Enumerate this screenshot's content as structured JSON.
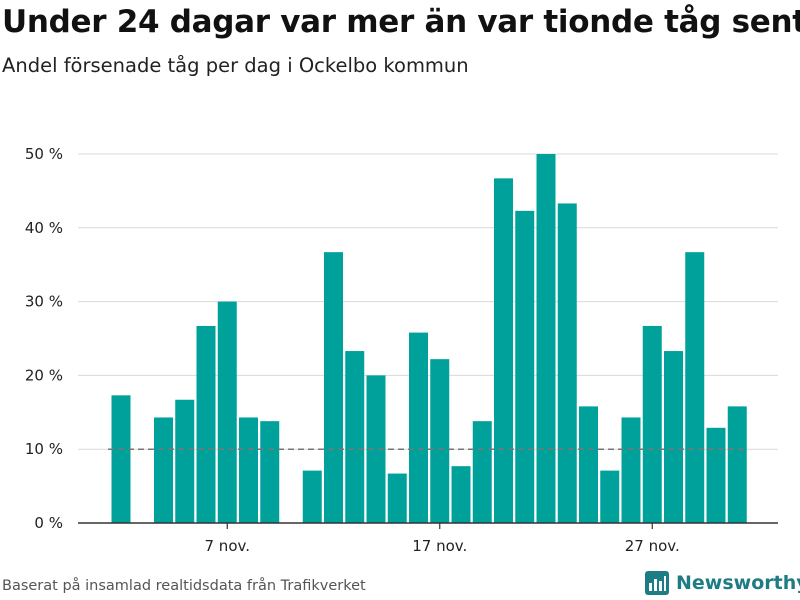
{
  "title": "Under 24 dagar var mer än var tionde tåg sent",
  "subtitle": "Andel försenade tåg per dag i Ockelbo kommun",
  "source": "Baserat på insamlad realtidsdata från Trafikverket",
  "logo": {
    "text": "Newsworthy",
    "icon": "newsworthy-logo-icon"
  },
  "colors": {
    "bar": "#00a19a",
    "grid": "#d9d9d9",
    "reference_line": "#777777",
    "axis": "#333333",
    "logo": "#1e7c84"
  },
  "chart_data": {
    "type": "bar",
    "x": [
      "2 nov.",
      "3 nov.",
      "4 nov.",
      "5 nov.",
      "6 nov.",
      "7 nov.",
      "8 nov.",
      "9 nov.",
      "10 nov.",
      "11 nov.",
      "12 nov.",
      "13 nov.",
      "14 nov.",
      "15 nov.",
      "16 nov.",
      "17 nov.",
      "18 nov.",
      "19 nov.",
      "20 nov.",
      "21 nov.",
      "22 nov.",
      "23 nov.",
      "24 nov.",
      "25 nov.",
      "26 nov.",
      "27 nov.",
      "28 nov.",
      "29 nov.",
      "30 nov.",
      "1 dec."
    ],
    "values": [
      17.3,
      null,
      14.3,
      16.7,
      26.7,
      30.0,
      14.3,
      13.8,
      null,
      7.1,
      36.7,
      23.3,
      20.0,
      6.7,
      25.8,
      22.2,
      7.7,
      13.8,
      46.7,
      42.3,
      50.0,
      43.3,
      15.8,
      7.1,
      14.3,
      26.7,
      23.3,
      36.7,
      12.9,
      15.8
    ],
    "x_tick_labels": [
      "7 nov.",
      "17 nov.",
      "27 nov."
    ],
    "y_ticks": [
      0,
      10,
      20,
      30,
      40,
      50
    ],
    "y_tick_labels": [
      "0 %",
      "10 %",
      "20 %",
      "30 %",
      "40 %",
      "50 %"
    ],
    "ylim": [
      0,
      50
    ],
    "reference_line": {
      "value": 10,
      "style": "dashed"
    },
    "grid": true
  }
}
